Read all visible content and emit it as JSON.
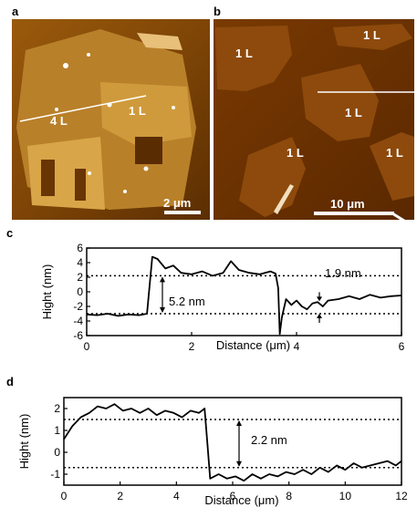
{
  "panels": {
    "a": {
      "letter": "a",
      "labels": [
        "4 L",
        "1 L"
      ],
      "scale_bar": "2 μm"
    },
    "b": {
      "letter": "b",
      "labels": [
        "1 L",
        "1 L",
        "1 L",
        "1 L",
        "1 L"
      ],
      "scale_bar": "10 μm"
    }
  },
  "chart_data": [
    {
      "panel": "c",
      "type": "line",
      "xlabel": "Distance (μm)",
      "ylabel": "Hight (nm)",
      "xlim": [
        0,
        6
      ],
      "ylim": [
        -6,
        6
      ],
      "xticks": [
        "0",
        "2",
        "4",
        "6"
      ],
      "yticks": [
        "6",
        "4",
        "2",
        "0",
        "-2",
        "-4",
        "-6"
      ],
      "reference_lines": [
        2.2,
        -3.0
      ],
      "annotations": [
        "5.2 nm",
        "1.9 nm"
      ],
      "series": [
        {
          "x": [
            0,
            0.2,
            0.4,
            0.6,
            0.8,
            1.0,
            1.15,
            1.25,
            1.35,
            1.5,
            1.65,
            1.8,
            2.0,
            2.2,
            2.4,
            2.6,
            2.75,
            2.9,
            3.1,
            3.3,
            3.5,
            3.6,
            3.65,
            3.68,
            3.72,
            3.8,
            3.9,
            4.0,
            4.1,
            4.2,
            4.3,
            4.4,
            4.5,
            4.6,
            4.8,
            5.0,
            5.2,
            5.4,
            5.6,
            5.8,
            6.0
          ],
          "y": [
            -3.1,
            -3.2,
            -3.0,
            -3.3,
            -3.1,
            -3.2,
            -3.0,
            4.8,
            4.5,
            3.2,
            3.6,
            2.6,
            2.4,
            2.8,
            2.2,
            2.6,
            4.2,
            3.0,
            2.6,
            2.4,
            2.8,
            2.5,
            0.5,
            -5.8,
            -3.5,
            -1.0,
            -1.8,
            -1.2,
            -2.0,
            -2.4,
            -1.6,
            -1.4,
            -2.0,
            -1.2,
            -1.0,
            -0.6,
            -1.0,
            -0.4,
            -0.8,
            -0.6,
            -0.5
          ]
        }
      ]
    },
    {
      "panel": "d",
      "type": "line",
      "xlabel": "Distance (μm)",
      "ylabel": "Hight (nm)",
      "xlim": [
        0,
        12
      ],
      "ylim": [
        -1.5,
        2.5
      ],
      "xticks": [
        "0",
        "2",
        "4",
        "6",
        "8",
        "10",
        "12"
      ],
      "yticks": [
        "2",
        "1",
        "0",
        "-1"
      ],
      "reference_lines": [
        1.5,
        -0.7
      ],
      "annotations": [
        "2.2 nm"
      ],
      "series": [
        {
          "x": [
            0,
            0.3,
            0.6,
            0.9,
            1.2,
            1.5,
            1.8,
            2.1,
            2.4,
            2.7,
            3.0,
            3.3,
            3.6,
            3.9,
            4.2,
            4.5,
            4.8,
            5.0,
            5.1,
            5.2,
            5.5,
            5.8,
            6.1,
            6.4,
            6.7,
            7.0,
            7.3,
            7.6,
            7.9,
            8.2,
            8.5,
            8.8,
            9.1,
            9.4,
            9.7,
            10.0,
            10.3,
            10.6,
            10.9,
            11.2,
            11.5,
            11.8,
            12.0
          ],
          "y": [
            0.6,
            1.2,
            1.6,
            1.8,
            2.1,
            2.0,
            2.2,
            1.9,
            2.0,
            1.8,
            2.0,
            1.7,
            1.9,
            1.8,
            1.6,
            1.9,
            1.8,
            2.0,
            0.4,
            -1.2,
            -1.0,
            -1.2,
            -1.1,
            -1.3,
            -1.0,
            -1.2,
            -1.0,
            -1.1,
            -0.9,
            -1.0,
            -0.8,
            -1.0,
            -0.7,
            -0.9,
            -0.6,
            -0.8,
            -0.5,
            -0.7,
            -0.6,
            -0.5,
            -0.4,
            -0.6,
            -0.4
          ]
        }
      ]
    }
  ]
}
